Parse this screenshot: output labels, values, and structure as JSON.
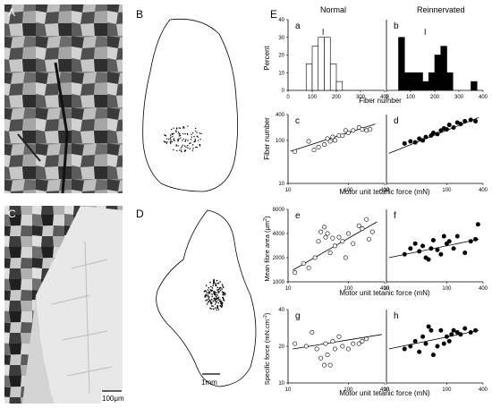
{
  "panel_letters": {
    "A": "A",
    "B": "B",
    "C": "C",
    "D": "D",
    "E": "E"
  },
  "scale_bars": {
    "micro": "100μm",
    "outline": "1mm"
  },
  "columns": {
    "normal": "Normal",
    "reinnervated": "Reinnervated"
  },
  "subpanel_letters": {
    "a": "a",
    "b": "b",
    "c": "c",
    "d": "d",
    "e": "e",
    "f": "f",
    "g": "g",
    "h": "h"
  },
  "axes": {
    "percent_label": "Percent",
    "fiber_number_xlabel": "Fiber number",
    "fiber_number_ylabel": "Fiber number",
    "force_xlabel": "Motor unit tetanic force (mN)",
    "area_ylabel": "Mean fibre area (μm",
    "area_ylabel_sup": "2",
    "area_ylabel_end": ")",
    "specific_ylabel": "Specific force (mN.cm",
    "specific_ylabel_sup": "-2",
    "specific_ylabel_end": ")",
    "hist_x_ticks": [
      "0",
      "100",
      "200",
      "300",
      "400"
    ],
    "hist_y_ticks": [
      "0",
      "10",
      "20",
      "30",
      "40"
    ],
    "force_ticks": [
      "10",
      "100",
      "400"
    ],
    "fiber_ticks": [
      "10",
      "100",
      "400"
    ],
    "area_ticks": [
      "1000",
      "2000",
      "4000",
      "8000"
    ],
    "specific_ticks": [
      "10",
      "20",
      "40"
    ]
  },
  "colors": {
    "filled": "#000000",
    "open": "#ffffff",
    "line": "#000000"
  },
  "chart_data": [
    {
      "id": "a",
      "type": "bar",
      "xlabel": "Fiber number",
      "ylabel": "Percent",
      "ylim": [
        0,
        40
      ],
      "xlim": [
        0,
        400
      ],
      "bins": [
        [
          75,
          100
        ],
        [
          100,
          125
        ],
        [
          125,
          150
        ],
        [
          150,
          175
        ],
        [
          175,
          200
        ],
        [
          200,
          225
        ]
      ],
      "values": [
        15,
        25,
        30,
        30,
        15,
        5
      ],
      "mean": 145
    },
    {
      "id": "b",
      "type": "bar",
      "xlabel": "Fiber number",
      "ylabel": "Percent",
      "ylim": [
        0,
        40
      ],
      "xlim": [
        0,
        400
      ],
      "bins": [
        [
          50,
          75
        ],
        [
          75,
          100
        ],
        [
          100,
          125
        ],
        [
          125,
          150
        ],
        [
          150,
          175
        ],
        [
          175,
          200
        ],
        [
          200,
          225
        ],
        [
          225,
          250
        ],
        [
          250,
          275
        ],
        [
          350,
          375
        ]
      ],
      "values": [
        30,
        10,
        10,
        10,
        5,
        10,
        20,
        25,
        10,
        5
      ],
      "mean": 160
    },
    {
      "id": "c",
      "type": "scatter",
      "scale": "log-log",
      "xlabel": "Motor unit tetanic force (mN)",
      "ylabel": "Fiber number",
      "xlim": [
        10,
        400
      ],
      "ylim": [
        10,
        400
      ],
      "marker": "open",
      "x": [
        13,
        22,
        27,
        32,
        40,
        45,
        50,
        55,
        60,
        70,
        80,
        90,
        100,
        120,
        150,
        170,
        200,
        230
      ],
      "y": [
        55,
        95,
        60,
        70,
        80,
        110,
        95,
        120,
        100,
        130,
        130,
        170,
        150,
        170,
        200,
        180,
        170,
        180
      ],
      "fit": [
        [
          11,
          56
        ],
        [
          280,
          240
        ]
      ]
    },
    {
      "id": "d",
      "type": "scatter",
      "scale": "log-log",
      "xlabel": "Motor unit tetanic force (mN)",
      "ylabel": "Fiber number",
      "xlim": [
        10,
        400
      ],
      "ylim": [
        10,
        400
      ],
      "marker": "filled",
      "x": [
        20,
        25,
        30,
        35,
        40,
        45,
        55,
        60,
        70,
        80,
        90,
        100,
        110,
        130,
        150,
        170,
        200,
        250,
        300
      ],
      "y": [
        85,
        95,
        90,
        110,
        100,
        120,
        130,
        150,
        140,
        170,
        190,
        180,
        230,
        200,
        260,
        240,
        280,
        300,
        280
      ],
      "fit": [
        [
          11,
          50
        ],
        [
          340,
          340
        ]
      ]
    },
    {
      "id": "e",
      "type": "scatter",
      "scale": "log-log",
      "xlabel": "Motor unit tetanic force (mN)",
      "ylabel": "Mean fibre area",
      "xlim": [
        10,
        400
      ],
      "ylim": [
        1000,
        8000
      ],
      "marker": "open",
      "x": [
        13,
        18,
        22,
        28,
        32,
        35,
        40,
        42,
        45,
        50,
        55,
        60,
        70,
        80,
        90,
        100,
        120,
        150,
        170,
        200,
        220,
        250
      ],
      "y": [
        1300,
        1700,
        1500,
        2000,
        3200,
        4200,
        4800,
        3600,
        4000,
        2300,
        3500,
        2800,
        3600,
        3200,
        2000,
        4000,
        3000,
        5000,
        4600,
        6000,
        3400,
        4200
      ],
      "fit": [
        [
          12,
          1400
        ],
        [
          300,
          5600
        ]
      ]
    },
    {
      "id": "f",
      "type": "scatter",
      "scale": "log-log",
      "xlabel": "Motor unit tetanic force (mN)",
      "ylabel": "Mean fibre area",
      "xlim": [
        10,
        400
      ],
      "ylim": [
        1000,
        8000
      ],
      "marker": "filled",
      "x": [
        20,
        25,
        30,
        35,
        40,
        45,
        50,
        55,
        60,
        70,
        80,
        90,
        100,
        110,
        130,
        150,
        200,
        250,
        300,
        330
      ],
      "y": [
        2200,
        2600,
        3000,
        2400,
        2800,
        2000,
        1900,
        2600,
        3300,
        2500,
        2200,
        3700,
        3000,
        3200,
        2600,
        3700,
        2300,
        3200,
        3400,
        5200
      ],
      "fit": [
        [
          11,
          2000
        ],
        [
          340,
          3400
        ]
      ]
    },
    {
      "id": "g",
      "type": "scatter",
      "scale": "log-log",
      "xlabel": "Motor unit tetanic force (mN)",
      "ylabel": "Specific force",
      "xlim": [
        10,
        400
      ],
      "ylim": [
        10,
        40
      ],
      "marker": "open",
      "x": [
        13,
        20,
        25,
        30,
        35,
        40,
        42,
        45,
        50,
        55,
        60,
        70,
        80,
        100,
        120,
        150,
        170,
        200
      ],
      "y": [
        21,
        20,
        26,
        19,
        16,
        14,
        21,
        17,
        14,
        22,
        19,
        24,
        20,
        19,
        21,
        21,
        22,
        23
      ],
      "fit": [
        [
          12,
          19
        ],
        [
          360,
          25
        ]
      ]
    },
    {
      "id": "h",
      "type": "scatter",
      "scale": "log-log",
      "xlabel": "Motor unit tetanic force (mN)",
      "ylabel": "Specific force",
      "xlim": [
        10,
        400
      ],
      "ylim": [
        10,
        40
      ],
      "marker": "filled",
      "x": [
        20,
        25,
        30,
        35,
        40,
        45,
        50,
        55,
        60,
        70,
        80,
        90,
        100,
        110,
        120,
        130,
        150,
        170,
        200,
        250,
        300
      ],
      "y": [
        19,
        20,
        22,
        18,
        24,
        21,
        29,
        27,
        17,
        20,
        27,
        21,
        24,
        22,
        25,
        27,
        26,
        25,
        28,
        26,
        27
      ],
      "fit": [
        [
          11,
          19
        ],
        [
          340,
          27
        ]
      ]
    }
  ]
}
